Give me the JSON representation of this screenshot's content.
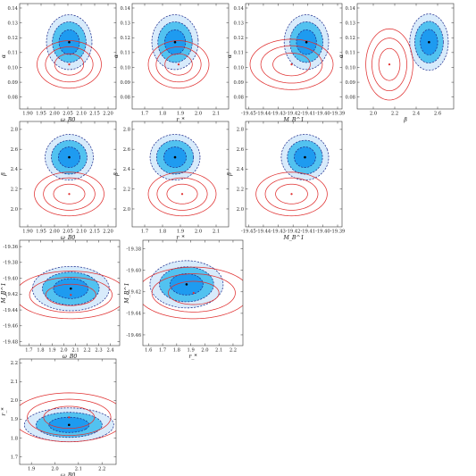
{
  "colors": {
    "inner_fill": "#1e9bf0",
    "middle_fill": "#52c2f0",
    "outer_fill": "#d8ebfb",
    "dashed_contour": "#1b2a8c",
    "red_contour": "#e03030",
    "best_fit_black": "#000000",
    "best_fit_red": "#e03030"
  },
  "chart_data": [
    {
      "type": "contour",
      "xlabel": "ω_B0",
      "ylabel": "α",
      "xlim": [
        1.87,
        2.23
      ],
      "ylim": [
        0.072,
        0.143
      ],
      "xticks": [
        "1.90",
        "1.95",
        "2.00",
        "2.05",
        "2.10",
        "2.15",
        "2.20"
      ],
      "yticks": [
        "0.08",
        "0.09",
        "0.10",
        "0.11",
        "0.12",
        "0.13",
        "0.14"
      ],
      "blue_center": [
        2.055,
        0.117
      ],
      "blue_radius": [
        0.085,
        0.0185
      ],
      "blue_angle": -5,
      "red_center": [
        2.055,
        0.102
      ],
      "red_radius": [
        0.12,
        0.016
      ],
      "red_angle": -3
    },
    {
      "type": "contour",
      "xlabel": "r_*",
      "ylabel": "α",
      "xlim": [
        1.63,
        2.17
      ],
      "ylim": [
        0.072,
        0.143
      ],
      "xticks": [
        "1.7",
        "1.8",
        "1.9",
        "2.0",
        "2.1"
      ],
      "yticks": [
        "0.08",
        "0.09",
        "0.10",
        "0.11",
        "0.12",
        "0.13",
        "0.14"
      ],
      "blue_center": [
        1.87,
        0.117
      ],
      "blue_radius": [
        0.13,
        0.0185
      ],
      "blue_angle": 5,
      "red_center": [
        1.89,
        0.102
      ],
      "red_radius": [
        0.17,
        0.016
      ],
      "red_angle": 8
    },
    {
      "type": "contour",
      "xlabel": "M_B^1",
      "ylabel": "α",
      "xlim": [
        -19.452,
        -19.387
      ],
      "ylim": [
        0.072,
        0.143
      ],
      "xticks": [
        "-19.45",
        "-19.44",
        "-19.43",
        "-19.42",
        "-19.41",
        "-19.40",
        "-19.39"
      ],
      "yticks": [
        "0.08",
        "0.09",
        "0.10",
        "0.11",
        "0.12",
        "0.13",
        "0.14"
      ],
      "blue_center": [
        -19.411,
        0.117
      ],
      "blue_radius": [
        0.015,
        0.0185
      ],
      "blue_angle": 15,
      "red_center": [
        -19.421,
        0.102
      ],
      "red_radius": [
        0.028,
        0.017
      ],
      "red_angle": 25
    },
    {
      "type": "contour",
      "xlabel": "β",
      "ylabel": "α",
      "xlim": [
        1.85,
        2.75
      ],
      "ylim": [
        0.072,
        0.143
      ],
      "xticks": [
        "2.0",
        "2.2",
        "2.4",
        "2.6"
      ],
      "yticks": [
        "0.08",
        "0.09",
        "0.10",
        "0.11",
        "0.12",
        "0.13",
        "0.14"
      ],
      "blue_center": [
        2.52,
        0.117
      ],
      "blue_radius": [
        0.18,
        0.019
      ],
      "blue_angle": 0,
      "red_center": [
        2.15,
        0.102
      ],
      "red_radius": [
        0.22,
        0.024
      ],
      "red_angle": 0
    },
    {
      "type": "contour",
      "xlabel": "ω_B0",
      "ylabel": "β",
      "xlim": [
        1.87,
        2.23
      ],
      "ylim": [
        1.82,
        2.88
      ],
      "xticks": [
        "1.90",
        "1.95",
        "2.00",
        "2.05",
        "2.10",
        "2.15",
        "2.20"
      ],
      "yticks": [
        "2.0",
        "2.2",
        "2.4",
        "2.6",
        "2.8"
      ],
      "blue_center": [
        2.055,
        2.52
      ],
      "blue_radius": [
        0.09,
        0.23
      ],
      "blue_angle": 0,
      "red_center": [
        2.055,
        2.15
      ],
      "red_radius": [
        0.13,
        0.22
      ],
      "red_angle": 0
    },
    {
      "type": "contour",
      "xlabel": "r_*",
      "ylabel": "β",
      "xlim": [
        1.63,
        2.17
      ],
      "ylim": [
        1.82,
        2.88
      ],
      "xticks": [
        "1.7",
        "1.8",
        "1.9",
        "2.0",
        "2.1"
      ],
      "yticks": [
        "2.0",
        "2.2",
        "2.4",
        "2.6",
        "2.8"
      ],
      "blue_center": [
        1.87,
        2.52
      ],
      "blue_radius": [
        0.14,
        0.23
      ],
      "blue_angle": 0,
      "red_center": [
        1.91,
        2.15
      ],
      "red_radius": [
        0.19,
        0.22
      ],
      "red_angle": 0
    },
    {
      "type": "contour",
      "xlabel": "M_B^1",
      "ylabel": "β",
      "xlim": [
        -19.452,
        -19.387
      ],
      "ylim": [
        1.82,
        2.88
      ],
      "xticks": [
        "-19.45",
        "-19.44",
        "-19.43",
        "-19.42",
        "-19.41",
        "-19.40",
        "-19.39"
      ],
      "yticks": [
        "2.0",
        "2.2",
        "2.4",
        "2.6",
        "2.8"
      ],
      "blue_center": [
        -19.412,
        2.52
      ],
      "blue_radius": [
        0.016,
        0.23
      ],
      "blue_angle": 20,
      "red_center": [
        -19.421,
        2.15
      ],
      "red_radius": [
        0.024,
        0.22
      ],
      "red_angle": 25
    },
    {
      "type": "contour",
      "xlabel": "ω_B0",
      "ylabel": "M_B^1",
      "xlim": [
        1.62,
        2.48
      ],
      "ylim": [
        -19.485,
        -19.352
      ],
      "xticks": [
        "1.7",
        "1.8",
        "1.9",
        "2.0",
        "2.1",
        "2.2",
        "2.3",
        "2.4"
      ],
      "yticks": [
        "-19.48",
        "-19.46",
        "-19.44",
        "-19.42",
        "-19.40",
        "-19.38",
        "-19.36"
      ],
      "blue_center": [
        2.06,
        -19.413
      ],
      "blue_radius": [
        0.33,
        0.028
      ],
      "blue_angle": 52,
      "red_center": [
        2.06,
        -19.421
      ],
      "red_radius": [
        0.48,
        0.03
      ],
      "red_angle": 52
    },
    {
      "type": "contour",
      "xlabel": "r_*",
      "ylabel": "M_B^1",
      "xlim": [
        1.56,
        2.27
      ],
      "ylim": [
        -19.47,
        -19.372
      ],
      "xticks": [
        "1.6",
        "1.7",
        "1.8",
        "1.9",
        "2.0",
        "2.1",
        "2.2"
      ],
      "yticks": [
        "-19.46",
        "-19.44",
        "-19.42",
        "-19.40",
        "-19.38"
      ],
      "blue_center": [
        1.87,
        -19.413
      ],
      "blue_radius": [
        0.26,
        0.022
      ],
      "blue_angle": 42,
      "red_center": [
        1.92,
        -19.421
      ],
      "red_radius": [
        0.4,
        0.024
      ],
      "red_angle": 42
    },
    {
      "type": "contour",
      "xlabel": "ω_B0",
      "ylabel": "r_*",
      "xlim": [
        1.85,
        2.26
      ],
      "ylim": [
        1.66,
        2.22
      ],
      "xticks": [
        "1.9",
        "2.0",
        "2.1",
        "2.2"
      ],
      "yticks": [
        "1.7",
        "1.8",
        "1.9",
        "2.0",
        "2.1",
        "2.2"
      ],
      "blue_center": [
        2.06,
        1.87
      ],
      "blue_radius": [
        0.19,
        0.09
      ],
      "blue_angle": -35,
      "red_center": [
        2.06,
        1.91
      ],
      "red_radius": [
        0.24,
        0.13
      ],
      "red_angle": -35
    }
  ]
}
